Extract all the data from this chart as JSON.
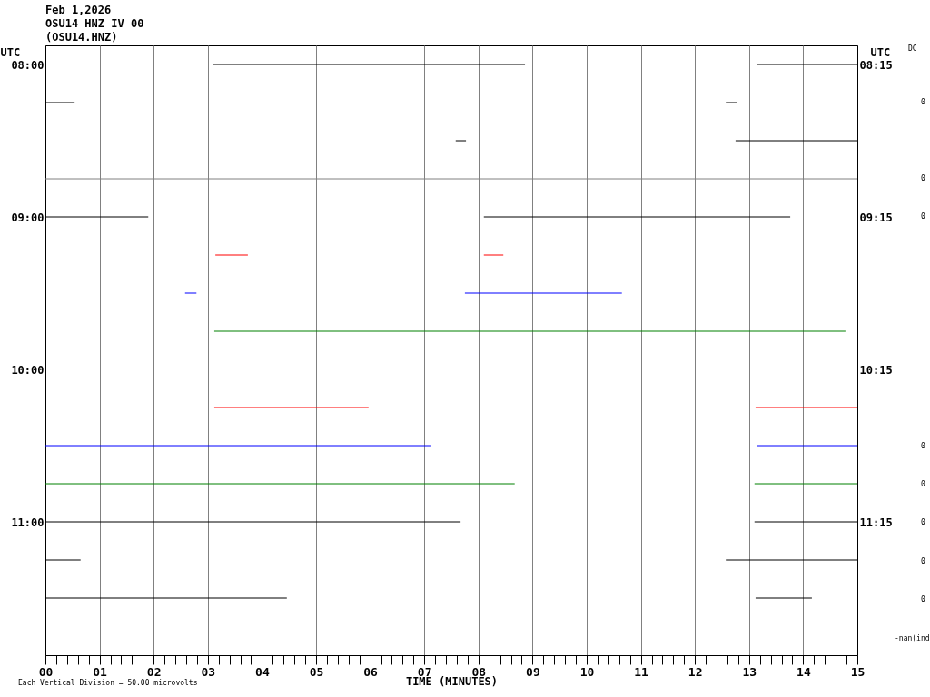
{
  "chart_data": {
    "type": "line",
    "title": "Feb 1,2026",
    "subtitle": "OSU14 HNZ IV 00\n(OSU14.HNZ)",
    "xlabel": "TIME (MINUTES)",
    "ylabel": "UTC",
    "y2label": "UTC",
    "xlim": [
      0,
      15
    ],
    "xticks": [
      {
        "value": 0,
        "label": "00"
      },
      {
        "value": 1,
        "label": "01"
      },
      {
        "value": 2,
        "label": "02"
      },
      {
        "value": 3,
        "label": "03"
      },
      {
        "value": 4,
        "label": "04"
      },
      {
        "value": 5,
        "label": "05"
      },
      {
        "value": 6,
        "label": "06"
      },
      {
        "value": 7,
        "label": "07"
      },
      {
        "value": 8,
        "label": "08"
      },
      {
        "value": 9,
        "label": "09"
      },
      {
        "value": 10,
        "label": "10"
      },
      {
        "value": 11,
        "label": "11"
      },
      {
        "value": 12,
        "label": "12"
      },
      {
        "value": 13,
        "label": "13"
      },
      {
        "value": 14,
        "label": "14"
      },
      {
        "value": 15,
        "label": "15"
      }
    ],
    "ylim": [
      11.875,
      7.875
    ],
    "yticks": [
      {
        "value": 8,
        "label": "08:00"
      },
      {
        "value": 9,
        "label": "09:00"
      },
      {
        "value": 10,
        "label": "10:00"
      },
      {
        "value": 11,
        "label": "11:00"
      }
    ],
    "y2lim": [
      12.125,
      8.125
    ],
    "y2ticks": [
      {
        "value": 8.25,
        "label": "08:15"
      },
      {
        "value": 9.25,
        "label": "09:15"
      },
      {
        "value": 10.25,
        "label": "10:15"
      },
      {
        "value": 11.25,
        "label": "11:15"
      }
    ],
    "grid": "x",
    "marker": "none",
    "line_style": "solid",
    "series": [
      {
        "color": "#000000",
        "x": [
          3.1,
          8.86,
          11,
          13.14,
          15
        ],
        "values": [
          8,
          8,
          null,
          8,
          8
        ]
      },
      {
        "color": "#000000",
        "x": [
          0,
          0.54,
          6,
          12.57,
          12.77
        ],
        "values": [
          8.25,
          8.25,
          null,
          8.25,
          8.25
        ]
      },
      {
        "color": "#000000",
        "x": [
          7.58,
          7.77,
          10,
          12.75,
          15
        ],
        "values": [
          8.5,
          8.5,
          null,
          8.5,
          8.5
        ]
      },
      {
        "color": "#000000",
        "x": [
          0,
          1.9,
          5,
          8.1,
          13.76
        ],
        "values": [
          9,
          9,
          null,
          9,
          9
        ]
      },
      {
        "color": "#ff0000",
        "x": [
          3.14,
          3.74,
          6,
          8.1,
          8.46
        ],
        "values": [
          9.25,
          9.25,
          null,
          9.25,
          9.25
        ]
      },
      {
        "color": "#0000ff",
        "x": [
          2.58,
          2.79,
          5,
          7.75,
          10.65
        ],
        "values": [
          9.5,
          9.5,
          null,
          9.5,
          9.5
        ]
      },
      {
        "color": "#008000",
        "x": [
          3.12,
          14.78
        ],
        "values": [
          9.75,
          9.75
        ]
      },
      {
        "color": "#ff0000",
        "x": [
          3.12,
          5.97,
          9,
          13.12,
          15
        ],
        "values": [
          10.25,
          10.25,
          null,
          10.25,
          10.25
        ]
      },
      {
        "color": "#0000ff",
        "x": [
          0,
          7.13,
          10,
          13.15,
          15
        ],
        "values": [
          10.5,
          10.5,
          null,
          10.5,
          10.5
        ]
      },
      {
        "color": "#008000",
        "x": [
          0,
          8.67,
          11,
          13.1,
          15
        ],
        "values": [
          10.75,
          10.75,
          null,
          10.75,
          10.75
        ]
      },
      {
        "color": "#000000",
        "x": [
          0,
          7.67,
          10,
          13.1,
          15
        ],
        "values": [
          11,
          11,
          null,
          11,
          11
        ]
      },
      {
        "color": "#000000",
        "x": [
          0,
          0.65,
          6,
          12.57,
          15
        ],
        "values": [
          11.25,
          11.25,
          null,
          11.25,
          11.25
        ]
      },
      {
        "color": "#000000",
        "x": [
          0,
          4.46,
          9,
          13.12,
          14.16
        ],
        "values": [
          11.5,
          11.5,
          null,
          11.5,
          11.5
        ]
      }
    ],
    "ref_lines": [
      {
        "axis": "y",
        "value": 8.75,
        "color": "#808080"
      }
    ],
    "annotations": [
      "Each Vertical Division =   50.00 microvolts",
      "DC",
      "0",
      "0",
      "0",
      "0",
      "0",
      "0",
      "0",
      "0",
      "-nan(ind"
    ]
  }
}
